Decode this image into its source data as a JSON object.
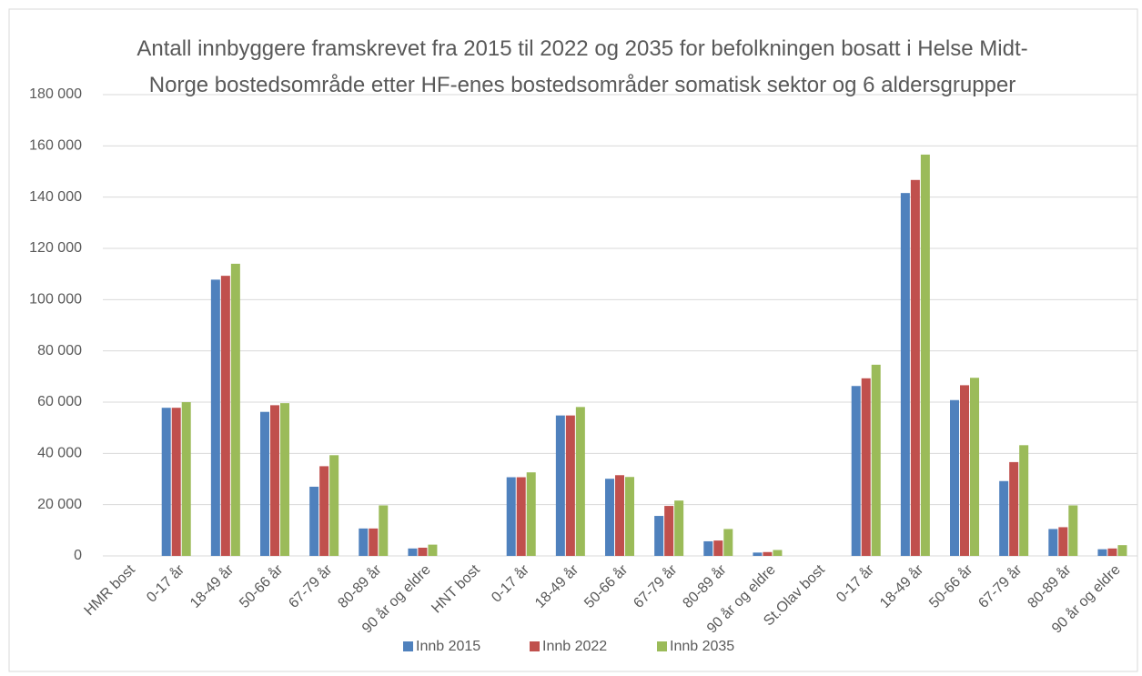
{
  "chart_data": {
    "type": "bar",
    "title": "Antall innbyggere framskrevet fra 2015 til 2022 og 2035 for befolkningen bosatt i Helse Midt-Norge bostedsområde etter HF-enes bostedsområder somatisk sektor og 6 aldersgrupper",
    "categories": [
      "HMR bost",
      "0-17 år",
      "18-49 år",
      "50-66 år",
      "67-79 år",
      "80-89 år",
      "90 år og eldre",
      "HNT bost",
      "0-17 år",
      "18-49 år",
      "50-66 år",
      "67-79 år",
      "80-89 år",
      "90 år og eldre",
      "St.Olav bost",
      "0-17 år",
      "18-49 år",
      "50-66 år",
      "67-79 år",
      "80-89 år",
      "90 år og eldre"
    ],
    "series": [
      {
        "name": "Innb 2015",
        "color": "#4f81bd",
        "values": [
          null,
          57800,
          107800,
          56200,
          27000,
          10700,
          2900,
          null,
          30700,
          54800,
          30100,
          15600,
          5700,
          1300,
          null,
          66300,
          141600,
          60800,
          29200,
          10500,
          2600
        ]
      },
      {
        "name": "Innb 2022",
        "color": "#c0504d",
        "values": [
          null,
          57800,
          109300,
          58800,
          35000,
          10700,
          3200,
          null,
          30700,
          54800,
          31500,
          19500,
          6000,
          1500,
          null,
          69300,
          146700,
          66600,
          36600,
          11200,
          2900
        ]
      },
      {
        "name": "Innb 2035",
        "color": "#9bbb59",
        "values": [
          null,
          60000,
          114000,
          59600,
          39300,
          19700,
          4400,
          null,
          32600,
          58100,
          30800,
          21600,
          10500,
          2300,
          null,
          74600,
          156600,
          69500,
          43200,
          19700,
          4200
        ]
      }
    ],
    "ylim": [
      0,
      180000
    ],
    "yticks": [
      0,
      {
        "value": 20000,
        "label": "20 000"
      },
      {
        "value": 40000,
        "label": "40 000"
      },
      {
        "value": 60000,
        "label": "60 000"
      },
      {
        "value": 80000,
        "label": "80 000"
      },
      {
        "value": 100000,
        "label": "100 000"
      },
      {
        "value": 120000,
        "label": "120 000"
      },
      {
        "value": 140000,
        "label": "140 000"
      },
      {
        "value": 160000,
        "label": "160 000"
      },
      {
        "value": 180000,
        "label": "180 000"
      }
    ],
    "grid": true,
    "legend": "bottom"
  }
}
